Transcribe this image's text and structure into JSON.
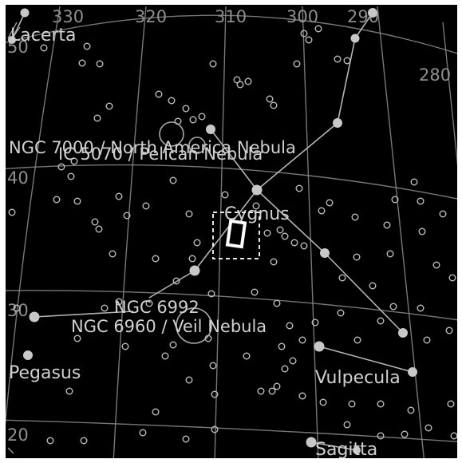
{
  "map": {
    "ra_labels": [
      "330",
      "320",
      "310",
      "300",
      "290",
      "280"
    ],
    "dec_labels": [
      "50",
      "40",
      "30",
      "20"
    ],
    "constellations": [
      "Lacerta",
      "Cygnus",
      "Pegasus",
      "Vulpecula",
      "Sagitta"
    ],
    "objects": [
      "NGC 7000 / North America Nebula",
      "IC 5070 / Pelican Nebula",
      "NGC 6992",
      "NGC 6960 / Veil Nebula"
    ],
    "colors": {
      "sky": "#000000",
      "grid": "#8c8c8c",
      "text": "#d0d0d0",
      "fov": "#ffffff"
    },
    "icons": {
      "field_of_view": "dashed-square",
      "sensor": "rotated-rectangle"
    }
  }
}
